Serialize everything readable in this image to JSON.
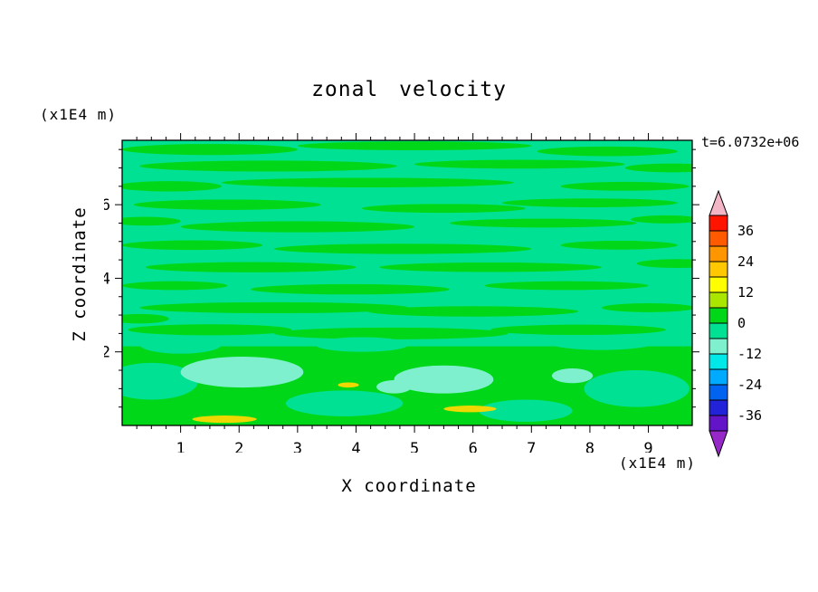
{
  "chart_data": {
    "type": "contour",
    "title": "zonal velocity",
    "timestamp": "t=6.0732e+06",
    "xlabel": "X coordinate",
    "ylabel": "Z coordinate",
    "x_unit": "(x1E4 m)",
    "y_unit": "(x1E4 m)",
    "x_range": [
      0,
      9.75
    ],
    "y_range": [
      0,
      7.75
    ],
    "x_ticks": [
      1,
      2,
      3,
      4,
      5,
      6,
      7,
      8,
      9
    ],
    "y_ticks": [
      2,
      4,
      6
    ],
    "contour_interval": 6,
    "grid": false,
    "legend_position": "right-colorbar",
    "colorbar": {
      "labels": [
        "36",
        "24",
        "12",
        "0",
        "-12",
        "-24",
        "-36"
      ],
      "boundaries": [
        42,
        36,
        30,
        24,
        18,
        12,
        6,
        0,
        -6,
        -12,
        -18,
        -24,
        -30,
        -36,
        -42
      ],
      "segment_colors_top_to_bottom": [
        "#FF1400",
        "#FF5A00",
        "#FF9600",
        "#FFC800",
        "#FFFF00",
        "#AAE600",
        "#00D718",
        "#00E193",
        "#7FF0CE",
        "#00E8E8",
        "#00AAFF",
        "#0064F0",
        "#2222D8",
        "#6414C8"
      ],
      "over_color": "#F2B6C6",
      "under_color": "#9628C8"
    },
    "field": {
      "description": "Zonal velocity field, predominantly between -6 and 6 m/s; streaky horizontal banding aloft, stronger green band below z=2 with weak negative (cyan) pools near z=1-1.5 at x=2 and x=5.5, and thin positive (yellow) streaks near the bottom boundary.",
      "background_level": "-6 to 0",
      "background_color": "#00E193",
      "palette": {
        "g": "#00D718",
        "e": "#00E193",
        "c": "#7FF0CE",
        "y": "#EED800"
      },
      "bands": [
        {
          "x1": 0,
          "x2": 9.75,
          "z1": 0,
          "z2": 2.15,
          "c": "g"
        }
      ],
      "blobs": [
        {
          "x": 1.5,
          "z": 7.5,
          "rx": 1.5,
          "ry": 0.15,
          "c": "g"
        },
        {
          "x": 5.0,
          "z": 7.6,
          "rx": 2.0,
          "ry": 0.12,
          "c": "g"
        },
        {
          "x": 8.3,
          "z": 7.45,
          "rx": 1.2,
          "ry": 0.13,
          "c": "g"
        },
        {
          "x": 2.5,
          "z": 7.05,
          "rx": 2.2,
          "ry": 0.15,
          "c": "g"
        },
        {
          "x": 6.8,
          "z": 7.1,
          "rx": 1.8,
          "ry": 0.12,
          "c": "g"
        },
        {
          "x": 9.4,
          "z": 7.0,
          "rx": 0.8,
          "ry": 0.12,
          "c": "g"
        },
        {
          "x": 0.8,
          "z": 6.5,
          "rx": 0.9,
          "ry": 0.14,
          "c": "g"
        },
        {
          "x": 4.2,
          "z": 6.6,
          "rx": 2.5,
          "ry": 0.13,
          "c": "g"
        },
        {
          "x": 8.6,
          "z": 6.5,
          "rx": 1.1,
          "ry": 0.12,
          "c": "g"
        },
        {
          "x": 1.8,
          "z": 6.0,
          "rx": 1.6,
          "ry": 0.14,
          "c": "g"
        },
        {
          "x": 5.5,
          "z": 5.9,
          "rx": 1.4,
          "ry": 0.12,
          "c": "g"
        },
        {
          "x": 8.0,
          "z": 6.05,
          "rx": 1.5,
          "ry": 0.12,
          "c": "g"
        },
        {
          "x": 0.4,
          "z": 5.55,
          "rx": 0.6,
          "ry": 0.12,
          "c": "g"
        },
        {
          "x": 3.0,
          "z": 5.4,
          "rx": 2.0,
          "ry": 0.15,
          "c": "g"
        },
        {
          "x": 7.2,
          "z": 5.5,
          "rx": 1.6,
          "ry": 0.12,
          "c": "g"
        },
        {
          "x": 9.3,
          "z": 5.6,
          "rx": 0.6,
          "ry": 0.11,
          "c": "g"
        },
        {
          "x": 1.2,
          "z": 4.9,
          "rx": 1.2,
          "ry": 0.13,
          "c": "g"
        },
        {
          "x": 4.8,
          "z": 4.8,
          "rx": 2.2,
          "ry": 0.14,
          "c": "g"
        },
        {
          "x": 8.5,
          "z": 4.9,
          "rx": 1.0,
          "ry": 0.12,
          "c": "g"
        },
        {
          "x": 2.2,
          "z": 4.3,
          "rx": 1.8,
          "ry": 0.14,
          "c": "g"
        },
        {
          "x": 6.3,
          "z": 4.3,
          "rx": 1.9,
          "ry": 0.13,
          "c": "g"
        },
        {
          "x": 9.5,
          "z": 4.4,
          "rx": 0.7,
          "ry": 0.12,
          "c": "g"
        },
        {
          "x": 0.9,
          "z": 3.8,
          "rx": 0.9,
          "ry": 0.12,
          "c": "g"
        },
        {
          "x": 3.9,
          "z": 3.7,
          "rx": 1.7,
          "ry": 0.14,
          "c": "g"
        },
        {
          "x": 7.6,
          "z": 3.8,
          "rx": 1.4,
          "ry": 0.12,
          "c": "g"
        },
        {
          "x": 2.6,
          "z": 3.2,
          "rx": 2.3,
          "ry": 0.15,
          "c": "g"
        },
        {
          "x": 6.0,
          "z": 3.1,
          "rx": 1.8,
          "ry": 0.14,
          "c": "g"
        },
        {
          "x": 9.0,
          "z": 3.2,
          "rx": 0.8,
          "ry": 0.12,
          "c": "g"
        },
        {
          "x": 0.3,
          "z": 2.9,
          "rx": 0.5,
          "ry": 0.13,
          "c": "g"
        },
        {
          "x": 1.5,
          "z": 2.6,
          "rx": 1.4,
          "ry": 0.15,
          "c": "g"
        },
        {
          "x": 4.6,
          "z": 2.5,
          "rx": 2.0,
          "ry": 0.16,
          "c": "g"
        },
        {
          "x": 7.8,
          "z": 2.6,
          "rx": 1.5,
          "ry": 0.14,
          "c": "g"
        },
        {
          "x": 1.0,
          "z": 2.2,
          "rx": 0.7,
          "ry": 0.25,
          "c": "e"
        },
        {
          "x": 4.1,
          "z": 2.2,
          "rx": 0.8,
          "ry": 0.2,
          "c": "e"
        },
        {
          "x": 8.2,
          "z": 2.25,
          "rx": 0.9,
          "ry": 0.2,
          "c": "e"
        },
        {
          "x": 0.5,
          "z": 1.2,
          "rx": 0.8,
          "ry": 0.5,
          "c": "e"
        },
        {
          "x": 3.8,
          "z": 0.6,
          "rx": 1.0,
          "ry": 0.35,
          "c": "e"
        },
        {
          "x": 6.9,
          "z": 0.4,
          "rx": 0.8,
          "ry": 0.3,
          "c": "e"
        },
        {
          "x": 8.8,
          "z": 1.0,
          "rx": 0.9,
          "ry": 0.5,
          "c": "e"
        },
        {
          "x": 2.05,
          "z": 1.45,
          "rx": 1.05,
          "ry": 0.42,
          "c": "c"
        },
        {
          "x": 5.5,
          "z": 1.25,
          "rx": 0.85,
          "ry": 0.38,
          "c": "c"
        },
        {
          "x": 7.7,
          "z": 1.35,
          "rx": 0.35,
          "ry": 0.2,
          "c": "c"
        },
        {
          "x": 4.65,
          "z": 1.05,
          "rx": 0.3,
          "ry": 0.18,
          "c": "c"
        },
        {
          "x": 1.75,
          "z": 0.17,
          "rx": 0.55,
          "ry": 0.1,
          "c": "y"
        },
        {
          "x": 5.95,
          "z": 0.45,
          "rx": 0.45,
          "ry": 0.09,
          "c": "y"
        },
        {
          "x": 3.87,
          "z": 1.1,
          "rx": 0.18,
          "ry": 0.07,
          "c": "y"
        }
      ]
    }
  }
}
